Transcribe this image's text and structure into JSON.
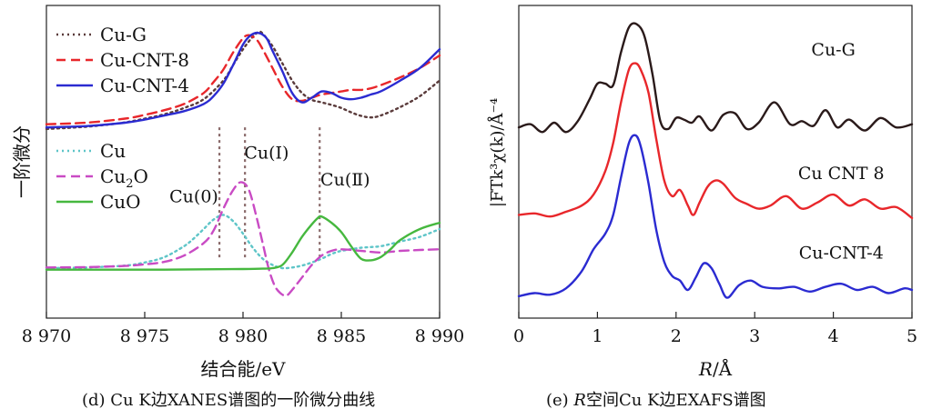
{
  "chart_data": [
    {
      "type": "line",
      "panel": "d",
      "caption": "(d) Cu K边XANES谱图的一阶微分曲线",
      "xlabel": "结合能/eV",
      "ylabel": "一阶微分",
      "xlim": [
        8970,
        8990
      ],
      "xticks": [
        8970,
        8975,
        8980,
        8985,
        8990
      ],
      "xtick_labels": [
        "8 970",
        "8 975",
        "8 980",
        "8 985",
        "8 990"
      ],
      "ylim": [
        0,
        10
      ],
      "yticks": [],
      "grid": false,
      "legend_placement": "top-left (two groups)",
      "groups": [
        {
          "series": [
            {
              "name": "Cu-G",
              "color": "#5a3b3b",
              "style": "dotted",
              "x": [
                8970,
                8971,
                8972,
                8973,
                8974,
                8975,
                8976,
                8977,
                8978,
                8979,
                8979.5,
                8980,
                8980.5,
                8980.8,
                8981,
                8981.5,
                8982,
                8982.5,
                8983,
                8983.5,
                8984,
                8984.5,
                8985,
                8985.5,
                8986,
                8986.5,
                8987,
                8988,
                8989,
                8990
              ],
              "y": [
                6.05,
                6.08,
                6.12,
                6.18,
                6.26,
                6.38,
                6.52,
                6.72,
                7.0,
                7.6,
                8.1,
                8.6,
                9.0,
                9.15,
                9.1,
                8.7,
                8.15,
                7.6,
                7.2,
                6.98,
                6.9,
                6.82,
                6.72,
                6.58,
                6.47,
                6.42,
                6.48,
                6.75,
                7.1,
                7.6
              ]
            },
            {
              "name": "Cu-CNT-8",
              "color": "#e8272b",
              "style": "dashed",
              "x": [
                8970,
                8972,
                8974,
                8975,
                8976,
                8977,
                8978,
                8978.5,
                8979,
                8979.5,
                8980,
                8980.3,
                8980.7,
                8981,
                8981.5,
                8982,
                8982.5,
                8983,
                8983.5,
                8984,
                8984.5,
                8985,
                8985.5,
                8986,
                8986.5,
                8987,
                8988,
                8989,
                8990
              ],
              "y": [
                6.2,
                6.25,
                6.38,
                6.5,
                6.65,
                6.85,
                7.2,
                7.55,
                7.95,
                8.5,
                8.95,
                9.05,
                8.9,
                8.6,
                8.0,
                7.4,
                7.0,
                6.95,
                7.05,
                7.15,
                7.2,
                7.25,
                7.3,
                7.3,
                7.35,
                7.45,
                7.7,
                8.0,
                8.4
              ]
            },
            {
              "name": "Cu-CNT-4",
              "color": "#2b2bd1",
              "style": "solid",
              "x": [
                8970,
                8972,
                8974,
                8975,
                8976,
                8977,
                8978,
                8978.5,
                8979,
                8979.5,
                8980,
                8980.4,
                8980.8,
                8981.2,
                8981.5,
                8982,
                8982.5,
                8983,
                8983.5,
                8984,
                8984.5,
                8985,
                8985.5,
                8986,
                8986.5,
                8987,
                8988,
                8989,
                8990
              ],
              "y": [
                6.1,
                6.14,
                6.25,
                6.35,
                6.48,
                6.62,
                6.85,
                7.1,
                7.5,
                8.1,
                8.75,
                9.05,
                9.12,
                8.95,
                8.55,
                7.9,
                7.2,
                6.9,
                7.05,
                7.25,
                7.2,
                7.05,
                7.0,
                7.05,
                7.15,
                7.25,
                7.6,
                8.0,
                8.6
              ]
            }
          ]
        },
        {
          "series": [
            {
              "name": "Cu",
              "color": "#5ec5c8",
              "style": "dotted",
              "x": [
                8970,
                8972,
                8974,
                8975,
                8976,
                8977,
                8977.5,
                8978,
                8978.5,
                8979,
                8979.5,
                8980,
                8980.5,
                8981,
                8981.5,
                8982,
                8982.5,
                8983,
                8983.5,
                8984,
                8984.5,
                8985,
                8986,
                8987,
                8988,
                8989,
                8990
              ],
              "y": [
                1.6,
                1.62,
                1.68,
                1.78,
                1.95,
                2.3,
                2.55,
                2.85,
                3.15,
                3.3,
                3.1,
                2.7,
                2.25,
                1.9,
                1.7,
                1.6,
                1.62,
                1.68,
                1.78,
                1.9,
                2.05,
                2.15,
                2.25,
                2.3,
                2.45,
                2.6,
                2.85
              ]
            },
            {
              "name": "Cu₂O",
              "name_base": "Cu",
              "name_sub": "2",
              "name_tail": "O",
              "color": "#c94bc4",
              "style": "dashed",
              "x": [
                8970,
                8972,
                8974,
                8975,
                8976,
                8977,
                8978,
                8978.5,
                8979,
                8979.5,
                8979.9,
                8980.3,
                8980.7,
                8981,
                8981.3,
                8981.6,
                8981.9,
                8982.2,
                8982.5,
                8983,
                8983.5,
                8984,
                8984.5,
                8985,
                8986,
                8987,
                8988,
                8989,
                8990
              ],
              "y": [
                1.62,
                1.63,
                1.67,
                1.72,
                1.8,
                2.0,
                2.4,
                2.8,
                3.5,
                4.1,
                4.35,
                4.1,
                3.2,
                2.4,
                1.6,
                1.05,
                0.8,
                0.72,
                0.9,
                1.3,
                1.7,
                2.0,
                2.15,
                2.2,
                2.15,
                2.1,
                2.15,
                2.18,
                2.2
              ]
            },
            {
              "name": "CuO",
              "color": "#46b83f",
              "style": "solid",
              "x": [
                8970,
                8972,
                8974,
                8976,
                8978,
                8980,
                8981,
                8981.5,
                8982,
                8982.5,
                8983,
                8983.5,
                8983.8,
                8984,
                8984.5,
                8985,
                8985.5,
                8986,
                8986.5,
                8987,
                8987.5,
                8988,
                8989,
                8990
              ],
              "y": [
                1.55,
                1.55,
                1.55,
                1.55,
                1.56,
                1.57,
                1.58,
                1.6,
                1.7,
                2.1,
                2.6,
                3.0,
                3.2,
                3.25,
                3.05,
                2.75,
                2.3,
                1.9,
                1.85,
                1.95,
                2.2,
                2.5,
                2.85,
                3.05
              ]
            }
          ]
        }
      ],
      "annotations": [
        {
          "text": "Cu(0)",
          "x": 8977.5,
          "y": 3.7
        },
        {
          "text": "Cu(Ⅰ)",
          "x": 8981.2,
          "y": 5.1
        },
        {
          "text": "Cu(Ⅱ)",
          "x": 8985.2,
          "y": 4.25
        }
      ],
      "reference_lines": [
        8978.8,
        8980.1,
        8983.9
      ],
      "reference_line_color": "#8a6a6a"
    },
    {
      "type": "line",
      "panel": "e",
      "caption_prefix": "(e) ",
      "caption_italic": "R",
      "caption_rest": "空间Cu K边EXAFS谱图",
      "xlabel_italic": "R",
      "xlabel_rest": "/Å",
      "ylabel": "|FTk³χ(k)/Å⁻⁴",
      "xlim": [
        0,
        5
      ],
      "xticks": [
        0,
        1,
        2,
        3,
        4,
        5
      ],
      "xtick_labels": [
        "0",
        "1",
        "2",
        "3",
        "4",
        "5"
      ],
      "ylim": [
        0,
        10
      ],
      "yticks": [],
      "grid": false,
      "legend_placement": "labels beside curves",
      "series": [
        {
          "name": "Cu-G",
          "color": "#2a1a1a",
          "style": "solid",
          "x": [
            0,
            0.15,
            0.3,
            0.45,
            0.6,
            0.75,
            0.9,
            1.0,
            1.1,
            1.2,
            1.3,
            1.4,
            1.5,
            1.6,
            1.7,
            1.8,
            1.9,
            2.0,
            2.1,
            2.2,
            2.3,
            2.45,
            2.6,
            2.75,
            2.9,
            3.05,
            3.25,
            3.45,
            3.6,
            3.75,
            3.9,
            4.05,
            4.2,
            4.4,
            4.6,
            4.8,
            5.0
          ],
          "y": [
            6.1,
            6.2,
            5.95,
            6.25,
            5.95,
            6.3,
            7.0,
            7.5,
            7.5,
            7.45,
            8.5,
            9.3,
            9.4,
            9.0,
            7.8,
            6.3,
            6.05,
            6.4,
            6.35,
            6.25,
            6.45,
            6.0,
            6.5,
            6.55,
            6.05,
            6.25,
            6.9,
            6.2,
            6.3,
            6.15,
            6.65,
            6.1,
            6.35,
            6.0,
            6.4,
            6.1,
            6.2
          ]
        },
        {
          "name": "Cu CNT 8",
          "color": "#e8272b",
          "style": "solid",
          "x": [
            0,
            0.2,
            0.4,
            0.6,
            0.8,
            0.95,
            1.1,
            1.2,
            1.3,
            1.4,
            1.48,
            1.55,
            1.65,
            1.75,
            1.85,
            1.95,
            2.05,
            2.15,
            2.22,
            2.3,
            2.4,
            2.5,
            2.6,
            2.75,
            2.9,
            3.05,
            3.2,
            3.4,
            3.6,
            3.8,
            4.0,
            4.2,
            4.4,
            4.6,
            4.8,
            5.0
          ],
          "y": [
            3.3,
            3.35,
            3.25,
            3.4,
            3.6,
            3.95,
            4.7,
            5.6,
            6.9,
            7.95,
            8.15,
            7.95,
            7.2,
            5.7,
            4.4,
            3.9,
            4.1,
            3.6,
            3.3,
            3.7,
            4.2,
            4.4,
            4.3,
            3.85,
            3.65,
            3.5,
            3.6,
            3.9,
            3.5,
            3.7,
            3.95,
            3.6,
            3.8,
            3.5,
            3.55,
            3.2
          ]
        },
        {
          "name": "Cu-CNT-4",
          "color": "#2b2bd1",
          "style": "solid",
          "x": [
            0,
            0.2,
            0.4,
            0.6,
            0.8,
            0.95,
            1.1,
            1.2,
            1.3,
            1.4,
            1.48,
            1.55,
            1.65,
            1.75,
            1.85,
            1.95,
            2.05,
            2.15,
            2.25,
            2.35,
            2.45,
            2.55,
            2.65,
            2.8,
            2.95,
            3.1,
            3.3,
            3.5,
            3.7,
            3.9,
            4.1,
            4.3,
            4.5,
            4.7,
            4.9,
            5.0
          ],
          "y": [
            0.7,
            0.8,
            0.75,
            0.95,
            1.5,
            2.2,
            2.7,
            3.3,
            4.5,
            5.6,
            5.85,
            5.5,
            4.3,
            2.8,
            1.8,
            1.35,
            1.2,
            0.9,
            1.3,
            1.75,
            1.6,
            1.1,
            0.65,
            1.05,
            1.2,
            1.0,
            0.95,
            1.0,
            0.85,
            1.0,
            1.1,
            0.9,
            1.0,
            0.8,
            0.95,
            0.9
          ]
        }
      ],
      "curve_labels": [
        {
          "text": "Cu-G",
          "x": 4.0,
          "y": 8.4
        },
        {
          "text": "Cu  CNT  8",
          "x": 4.1,
          "y": 4.45
        },
        {
          "text": "Cu-CNT-4",
          "x": 4.1,
          "y": 1.9
        }
      ]
    }
  ]
}
